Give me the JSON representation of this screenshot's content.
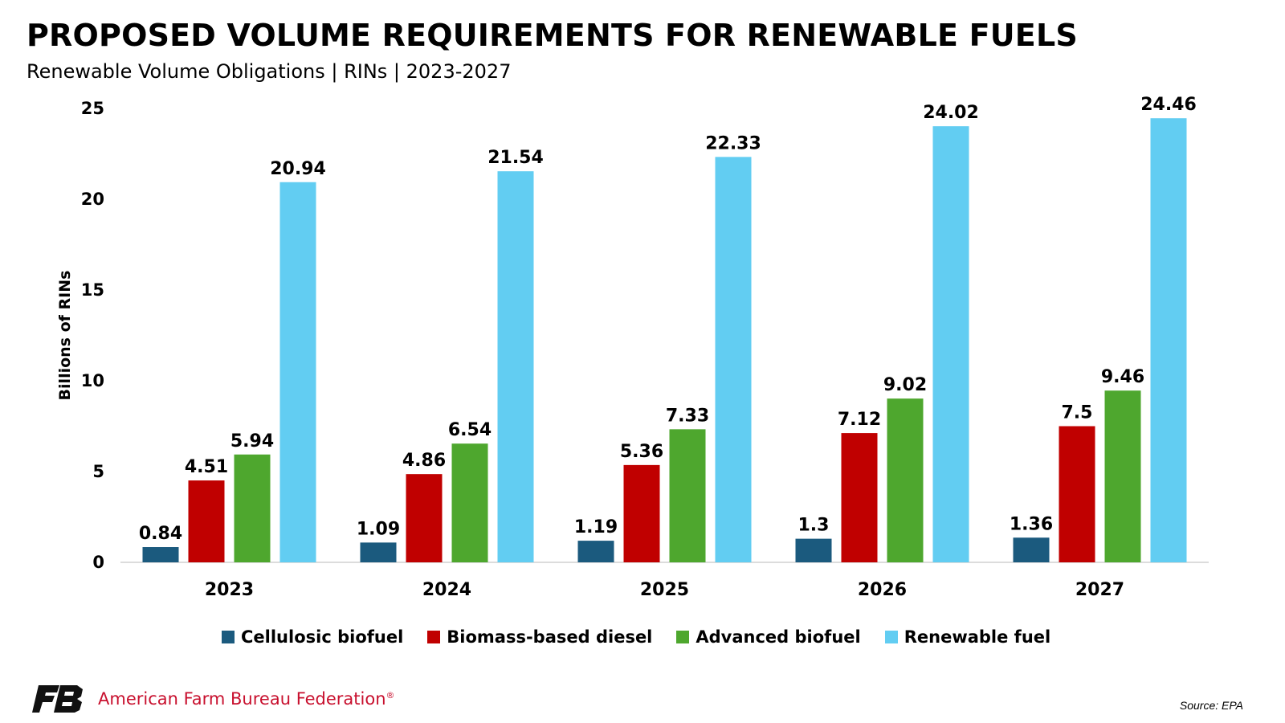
{
  "header": {
    "title": "PROPOSED VOLUME REQUIREMENTS FOR RENEWABLE FUELS",
    "subtitle": "Renewable Volume Obligations | RINs | 2023-2027"
  },
  "chart_data": {
    "type": "bar",
    "title": "PROPOSED VOLUME REQUIREMENTS FOR RENEWABLE FUELS",
    "subtitle": "Renewable Volume Obligations | RINs | 2023-2027",
    "xlabel": "",
    "ylabel": "Billions of RINs",
    "ylim": [
      0,
      25
    ],
    "yticks": [
      0,
      5,
      10,
      15,
      20,
      25
    ],
    "grid": false,
    "legend_position": "bottom",
    "categories": [
      "2023",
      "2024",
      "2025",
      "2026",
      "2027"
    ],
    "series": [
      {
        "name": "Cellulosic biofuel",
        "color": "#1b5a7e",
        "values": [
          0.84,
          1.09,
          1.19,
          1.3,
          1.36
        ]
      },
      {
        "name": "Biomass-based diesel",
        "color": "#c00000",
        "values": [
          4.51,
          4.86,
          5.36,
          7.12,
          7.5
        ]
      },
      {
        "name": "Advanced biofuel",
        "color": "#4ea72e",
        "values": [
          5.94,
          6.54,
          7.33,
          9.02,
          9.46
        ]
      },
      {
        "name": "Renewable fuel",
        "color": "#62cdf2",
        "values": [
          20.94,
          21.54,
          22.33,
          24.02,
          24.46
        ]
      }
    ]
  },
  "footer": {
    "organization": "American Farm Bureau Federation",
    "registered_mark": "®",
    "source": "Source: EPA",
    "logo_icon": "farm-bureau-logo-icon"
  }
}
